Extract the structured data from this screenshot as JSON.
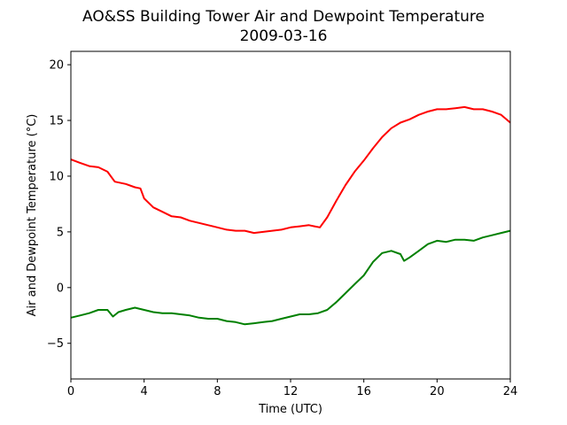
{
  "chart_data": {
    "type": "line",
    "title": "AO&SS Building Tower Air and Dewpoint Temperature",
    "subtitle": "2009-03-16",
    "xlabel": "Time (UTC)",
    "ylabel": "Air and Dewpoint Temperature (°C)",
    "xlim": [
      0,
      24
    ],
    "ylim": [
      -8.2,
      21.2
    ],
    "xticks": [
      0,
      4,
      8,
      12,
      16,
      20,
      24
    ],
    "yticks": [
      -5,
      0,
      5,
      10,
      15,
      20
    ],
    "grid": false,
    "series": [
      {
        "color": "#ff0000",
        "x": [
          0,
          0.5,
          1,
          1.5,
          2,
          2.4,
          3,
          3.5,
          3.8,
          4,
          4.5,
          5,
          5.5,
          6,
          6.5,
          7,
          7.5,
          8,
          8.5,
          9,
          9.5,
          10,
          10.5,
          11,
          11.5,
          12,
          12.5,
          13,
          13.3,
          13.6,
          14,
          14.5,
          15,
          15.5,
          16,
          16.5,
          17,
          17.5,
          18,
          18.5,
          19,
          19.5,
          20,
          20.5,
          21,
          21.5,
          22,
          22.5,
          23,
          23.5,
          24
        ],
        "y": [
          11.5,
          11.2,
          10.9,
          10.8,
          10.4,
          9.5,
          9.3,
          9.0,
          8.9,
          8.0,
          7.2,
          6.8,
          6.4,
          6.3,
          6.0,
          5.8,
          5.6,
          5.4,
          5.2,
          5.1,
          5.1,
          4.9,
          5.0,
          5.1,
          5.2,
          5.4,
          5.5,
          5.6,
          5.5,
          5.4,
          6.3,
          7.8,
          9.2,
          10.4,
          11.4,
          12.5,
          13.5,
          14.3,
          14.8,
          15.1,
          15.5,
          15.8,
          16.0,
          16.0,
          16.1,
          16.2,
          16.0,
          16.0,
          15.8,
          15.5,
          14.8
        ]
      },
      {
        "color": "#008000",
        "x": [
          0,
          0.5,
          1,
          1.5,
          2,
          2.3,
          2.6,
          3,
          3.5,
          4,
          4.5,
          5,
          5.5,
          6,
          6.5,
          7,
          7.5,
          8,
          8.5,
          9,
          9.5,
          10,
          10.5,
          11,
          11.5,
          12,
          12.5,
          13,
          13.5,
          14,
          14.5,
          15,
          15.5,
          16,
          16.5,
          17,
          17.5,
          18,
          18.2,
          18.5,
          19,
          19.5,
          20,
          20.5,
          21,
          21.5,
          22,
          22.5,
          23,
          23.5,
          24
        ],
        "y": [
          -2.7,
          -2.5,
          -2.3,
          -2.0,
          -2.0,
          -2.6,
          -2.2,
          -2.0,
          -1.8,
          -2.0,
          -2.2,
          -2.3,
          -2.3,
          -2.4,
          -2.5,
          -2.7,
          -2.8,
          -2.8,
          -3.0,
          -3.1,
          -3.3,
          -3.2,
          -3.1,
          -3.0,
          -2.8,
          -2.6,
          -2.4,
          -2.4,
          -2.3,
          -2.0,
          -1.3,
          -0.5,
          0.3,
          1.1,
          2.3,
          3.1,
          3.3,
          3.0,
          2.4,
          2.7,
          3.3,
          3.9,
          4.2,
          4.1,
          4.3,
          4.3,
          4.2,
          4.5,
          4.7,
          4.9,
          5.1
        ]
      }
    ]
  }
}
